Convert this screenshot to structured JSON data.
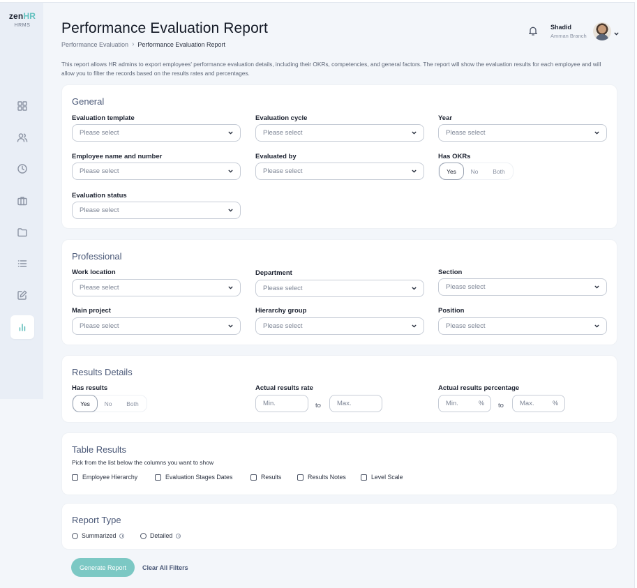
{
  "brand": {
    "logo_zen": "zen",
    "logo_hr": "HR",
    "logo_sub": "HRMS"
  },
  "sidebar": {
    "items": [
      {
        "icon": "dashboard-grid-icon"
      },
      {
        "icon": "users-icon"
      },
      {
        "icon": "clock-icon"
      },
      {
        "icon": "briefcase-icon"
      },
      {
        "icon": "folder-icon"
      },
      {
        "icon": "list-icon"
      },
      {
        "icon": "edit-icon"
      },
      {
        "icon": "bar-chart-icon",
        "active": true
      }
    ]
  },
  "header": {
    "title": "Performance Evaluation Report",
    "breadcrumb": {
      "parent": "Performance Evaluation",
      "separator": "›",
      "current": "Performance Evaluation Report"
    },
    "user": {
      "name": "Shadid",
      "branch": "Amman Branch"
    }
  },
  "intro": "This report allows HR admins to export employees' performance evaluation details, including their OKRs, competencies, and general factors. The report will show the evaluation results for each employee and will allow you to filter the records based on the results rates and percentages.",
  "placeholder": "Please select",
  "general": {
    "title": "General",
    "evaluation_template": "Evaluation template",
    "evaluation_cycle": "Evaluation cycle",
    "year": "Year",
    "employee_name": "Employee name and number",
    "evaluated_by": "Evaluated by",
    "has_okrs": "Has OKRs",
    "evaluation_status": "Evaluation status"
  },
  "toggle_options": {
    "yes": "Yes",
    "no": "No",
    "both": "Both",
    "selected": "Yes"
  },
  "professional": {
    "title": "Professional",
    "work_location": "Work location",
    "department": "Department",
    "section": "Section",
    "main_project": "Main project",
    "hierarchy_group": "Hierarchy group",
    "position": "Position"
  },
  "results": {
    "title": "Results Details",
    "has_results": "Has results",
    "actual_rate": "Actual results rate",
    "actual_percentage": "Actual results percentage",
    "min": "Min.",
    "max": "Max.",
    "to": "to",
    "pct": "%"
  },
  "table_results": {
    "title": "Table Results",
    "hint": "Pick from the list below the columns you want to show",
    "columns": [
      "Employee Hierarchy",
      "Evaluation Stages Dates",
      "Results",
      "Results Notes",
      "Level Scale"
    ]
  },
  "report_type": {
    "title": "Report Type",
    "options": [
      "Summarized",
      "Detailed"
    ]
  },
  "actions": {
    "generate": "Generate Report",
    "clear": "Clear All Filters"
  },
  "colors": {
    "accent": "#4fb7b3",
    "button": "#7cc8c4",
    "background": "#f3f6fa",
    "sidebar": "#e9eef6"
  }
}
